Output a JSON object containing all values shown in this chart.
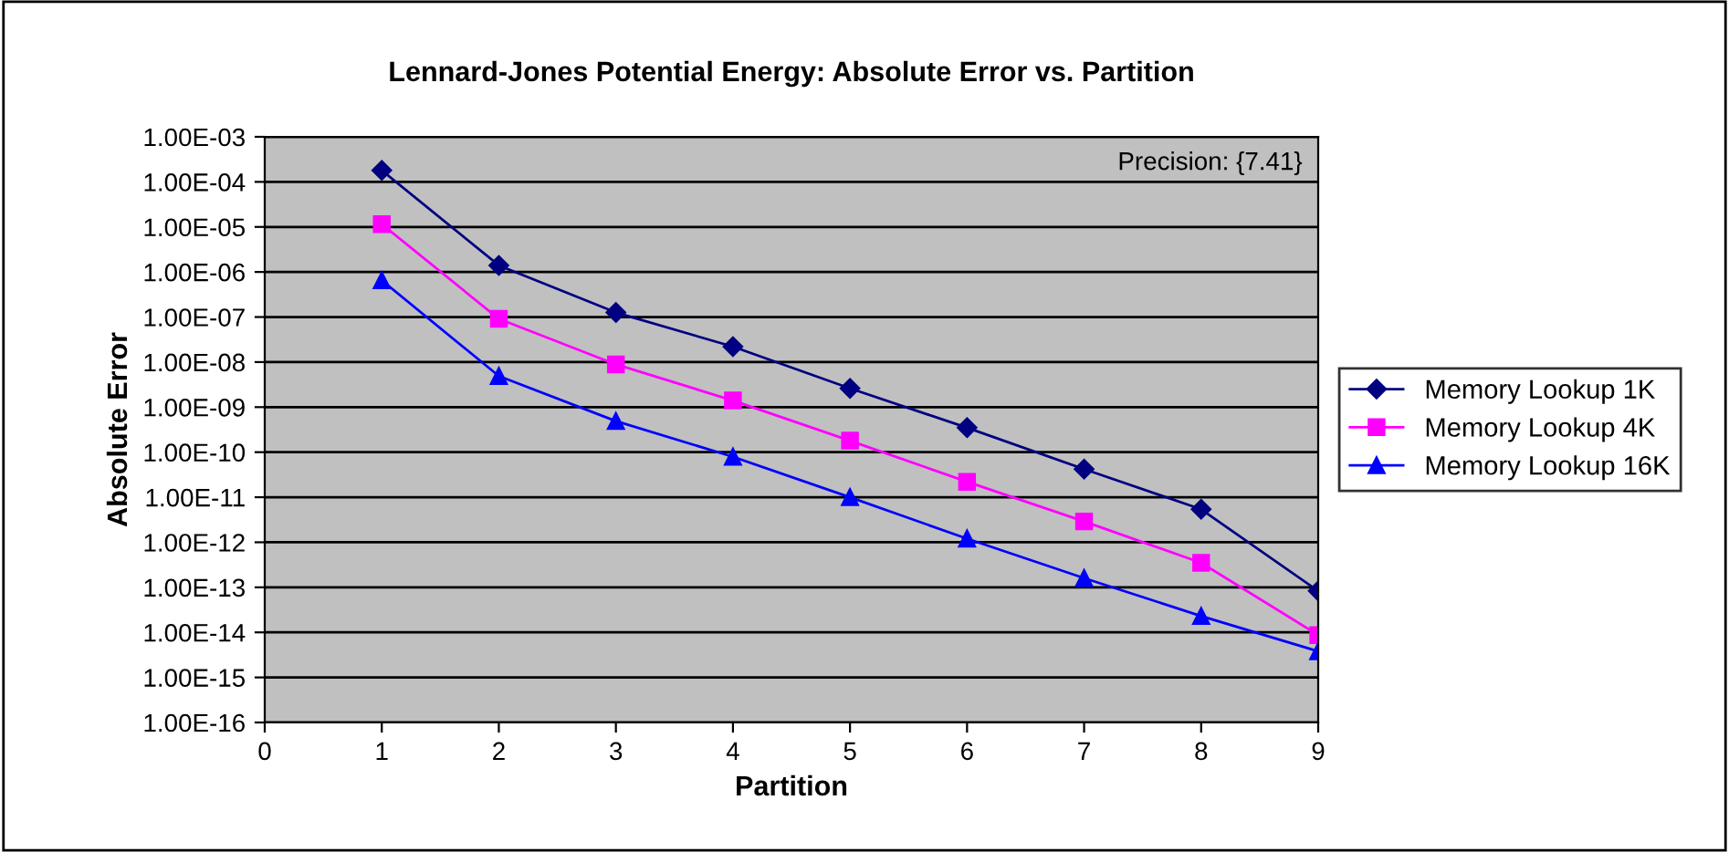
{
  "chart_data": {
    "type": "line",
    "title": "Lennard-Jones Potential Energy: Absolute Error vs. Partition",
    "xlabel": "Partition",
    "ylabel": "Absolute Error",
    "annotations": [
      "Precision: {7.41}"
    ],
    "x": [
      1,
      2,
      3,
      4,
      5,
      6,
      7,
      8,
      9
    ],
    "series": [
      {
        "name": "Memory Lookup 1K",
        "color": "#000080",
        "marker": "diamond",
        "values": [
          0.00018,
          1.4e-06,
          1.26e-07,
          2.2e-08,
          2.6e-09,
          3.5e-10,
          4.2e-11,
          5.4e-12,
          8.3e-14
        ]
      },
      {
        "name": "Memory Lookup 4K",
        "color": "#ff00ff",
        "marker": "square",
        "values": [
          1.15e-05,
          9.1e-08,
          8.9e-09,
          1.4e-09,
          1.8e-10,
          2.2e-11,
          2.9e-12,
          3.5e-13,
          8.7e-15
        ]
      },
      {
        "name": "Memory Lookup 16K",
        "color": "#0000ff",
        "marker": "triangle",
        "values": [
          6.5e-07,
          4.9e-09,
          4.9e-10,
          7.9e-11,
          1e-11,
          1.2e-12,
          1.6e-13,
          2.3e-14,
          3.8e-15
        ]
      }
    ],
    "log": "y",
    "xlim": [
      0,
      9
    ],
    "xticks": [
      0,
      1,
      2,
      3,
      4,
      5,
      6,
      7,
      8,
      9
    ],
    "ylim": [
      1e-16,
      0.001
    ],
    "yticks": [
      {
        "value": 1e-16,
        "label": "1.00E-16"
      },
      {
        "value": 1e-15,
        "label": "1.00E-15"
      },
      {
        "value": 1e-14,
        "label": "1.00E-14"
      },
      {
        "value": 1e-13,
        "label": "1.00E-13"
      },
      {
        "value": 1e-12,
        "label": "1.00E-12"
      },
      {
        "value": 1e-11,
        "label": "1.00E-11"
      },
      {
        "value": 1e-10,
        "label": "1.00E-10"
      },
      {
        "value": 1e-09,
        "label": "1.00E-09"
      },
      {
        "value": 1e-08,
        "label": "1.00E-08"
      },
      {
        "value": 1e-07,
        "label": "1.00E-07"
      },
      {
        "value": 1e-06,
        "label": "1.00E-06"
      },
      {
        "value": 1e-05,
        "label": "1.00E-05"
      },
      {
        "value": 0.0001,
        "label": "1.00E-04"
      },
      {
        "value": 0.001,
        "label": "1.00E-03"
      }
    ],
    "grid": "y",
    "legend": "right",
    "line_style": "solid"
  }
}
